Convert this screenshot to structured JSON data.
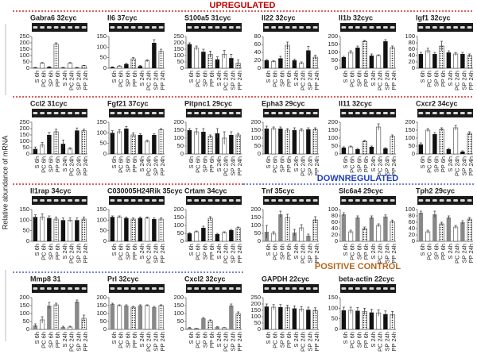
{
  "figure": {
    "y_label": "Relative abundance of mRNA",
    "sections": [
      {
        "title": "UPREGULATED",
        "color": "#c00000"
      },
      {
        "title": "DOWNREGULATED",
        "color": "#1f3fbf"
      },
      {
        "title": "POSITIVE CONTROL",
        "color": "#b5651d"
      }
    ]
  },
  "chart_data": [
    {
      "type": "bar",
      "title": "Gabra6 32cyc",
      "categories": [
        "S 6h",
        "PC 6h",
        "SP 6h",
        "PP 6h",
        "S 24h",
        "PC 24h",
        "SP 24h",
        "PP 24h"
      ],
      "values": [
        5,
        40,
        10,
        190,
        5,
        40,
        5,
        20
      ],
      "errors": [
        2,
        5,
        3,
        10,
        2,
        5,
        2,
        3
      ],
      "ylim": [
        0,
        250
      ],
      "yticks": [
        0,
        50,
        100,
        150,
        200,
        250
      ],
      "color": "#111111"
    },
    {
      "type": "bar",
      "title": "Il6 37cyc",
      "categories": [
        "S 6h",
        "PC 6h",
        "SP 6h",
        "PP 6h",
        "S 24h",
        "PC 24h",
        "SP 24h",
        "PP 24h"
      ],
      "values": [
        5,
        10,
        20,
        45,
        10,
        35,
        120,
        80
      ],
      "errors": [
        2,
        2,
        3,
        5,
        3,
        5,
        15,
        10
      ],
      "ylim": [
        0,
        150
      ],
      "yticks": [
        0,
        50,
        100,
        150
      ],
      "color": "#111111"
    },
    {
      "type": "bar",
      "title": "S100a5 31cyc",
      "categories": [
        "S 6h",
        "PC 6h",
        "SP 6h",
        "PP 6h",
        "S 24h",
        "PC 24h",
        "SP 24h",
        "PP 24h"
      ],
      "values": [
        190,
        160,
        130,
        110,
        70,
        110,
        80,
        40
      ],
      "errors": [
        10,
        15,
        20,
        25,
        20,
        30,
        30,
        25
      ],
      "ylim": [
        0,
        250
      ],
      "yticks": [
        0,
        50,
        100,
        150,
        200,
        250
      ],
      "color": "#111111"
    },
    {
      "type": "bar",
      "title": "Il22 32cyc",
      "categories": [
        "S 6h",
        "PC 6h",
        "SP 6h",
        "PP 6h",
        "S 24h",
        "PC 24h",
        "SP 24h",
        "PP 24h"
      ],
      "values": [
        20,
        17,
        25,
        58,
        20,
        13,
        45,
        28
      ],
      "errors": [
        2,
        2,
        5,
        8,
        3,
        3,
        10,
        5
      ],
      "ylim": [
        0,
        80
      ],
      "yticks": [
        0,
        20,
        40,
        60,
        80
      ],
      "color": "#111111"
    },
    {
      "type": "bar",
      "title": "Il1b 32cyc",
      "categories": [
        "S 6h",
        "PC 6h",
        "SP 6h",
        "PP 6h",
        "S 24h",
        "PC 24h",
        "SP 24h",
        "PP 24h"
      ],
      "values": [
        70,
        100,
        130,
        170,
        80,
        80,
        170,
        130
      ],
      "errors": [
        5,
        10,
        10,
        5,
        10,
        5,
        10,
        10
      ],
      "ylim": [
        0,
        200
      ],
      "yticks": [
        0,
        50,
        100,
        150,
        200
      ],
      "color": "#111111"
    },
    {
      "type": "bar",
      "title": "Igf1 32cyc",
      "categories": [
        "S 6h",
        "PC 6h",
        "SP 6h",
        "PP 6h",
        "S 24h",
        "PC 24h",
        "SP 24h",
        "PP 24h"
      ],
      "values": [
        45,
        55,
        45,
        70,
        50,
        45,
        45,
        40
      ],
      "errors": [
        5,
        8,
        5,
        15,
        5,
        5,
        5,
        5
      ],
      "ylim": [
        0,
        100
      ],
      "yticks": [
        0,
        20,
        40,
        60,
        80,
        100
      ],
      "color": "#111111"
    },
    {
      "type": "bar",
      "title": "Ccl2 31cyc",
      "categories": [
        "S 6h",
        "PC 6h",
        "SP 6h",
        "PP 6h",
        "S 24h",
        "PC 24h",
        "SP 24h",
        "PP 24h"
      ],
      "values": [
        40,
        70,
        150,
        175,
        80,
        40,
        185,
        185
      ],
      "errors": [
        15,
        20,
        20,
        20,
        30,
        10,
        20,
        10
      ],
      "ylim": [
        0,
        250
      ],
      "yticks": [
        0,
        50,
        100,
        150,
        200,
        250
      ],
      "color": "#111111"
    },
    {
      "type": "bar",
      "title": "Fgf21 37cyc",
      "categories": [
        "S 6h",
        "PC 6h",
        "SP 6h",
        "PP 6h",
        "S 24h",
        "PC 24h",
        "SP 24h",
        "PP 24h"
      ],
      "values": [
        100,
        105,
        120,
        90,
        90,
        60,
        90,
        115
      ],
      "errors": [
        10,
        10,
        10,
        10,
        5,
        5,
        5,
        5
      ],
      "ylim": [
        0,
        150
      ],
      "yticks": [
        0,
        50,
        100,
        150
      ],
      "color": "#111111"
    },
    {
      "type": "bar",
      "title": "Pitpnc1 29cyc",
      "categories": [
        "S 6h",
        "PC 6h",
        "SP 6h",
        "PP 6h",
        "S 24h",
        "PC 24h",
        "SP 24h",
        "PP 24h"
      ],
      "values": [
        150,
        140,
        140,
        110,
        130,
        100,
        120,
        120
      ],
      "errors": [
        10,
        20,
        20,
        10,
        30,
        40,
        20,
        10
      ],
      "ylim": [
        0,
        200
      ],
      "yticks": [
        0,
        50,
        100,
        150,
        200
      ],
      "color": "#111111"
    },
    {
      "type": "bar",
      "title": "Epha3 29cyc",
      "categories": [
        "S 6h",
        "PC 6h",
        "SP 6h",
        "PP 6h",
        "S 24h",
        "PC 24h",
        "SP 24h",
        "PP 24h"
      ],
      "values": [
        160,
        160,
        160,
        150,
        150,
        150,
        155,
        155
      ],
      "errors": [
        15,
        10,
        10,
        10,
        15,
        10,
        10,
        10
      ],
      "ylim": [
        0,
        200
      ],
      "yticks": [
        0,
        50,
        100,
        150,
        200
      ],
      "color": "#111111"
    },
    {
      "type": "bar",
      "title": "Il11 32cyc",
      "categories": [
        "S 6h",
        "PC 6h",
        "SP 6h",
        "PP 6h",
        "S 24h",
        "PC 24h",
        "SP 24h",
        "PP 24h"
      ],
      "values": [
        40,
        45,
        30,
        80,
        45,
        170,
        35,
        110
      ],
      "errors": [
        5,
        5,
        5,
        5,
        5,
        20,
        5,
        10
      ],
      "ylim": [
        0,
        200
      ],
      "yticks": [
        0,
        50,
        100,
        150,
        200
      ],
      "color": "#111111"
    },
    {
      "type": "bar",
      "title": "Cxcr2  34cyc",
      "categories": [
        "S 6h",
        "PC 6h",
        "SP 6h",
        "PP 6h",
        "S 24h",
        "PC 24h",
        "SP 24h",
        "PP 24h"
      ],
      "values": [
        60,
        150,
        125,
        155,
        30,
        165,
        15,
        130
      ],
      "errors": [
        10,
        10,
        10,
        10,
        5,
        15,
        5,
        10
      ],
      "ylim": [
        0,
        200
      ],
      "yticks": [
        0,
        50,
        100,
        150,
        200
      ],
      "color": "#111111"
    },
    {
      "type": "bar",
      "title": "Il1rap 34cyc",
      "categories": [
        "S 6h",
        "PC 6h",
        "SP 6h",
        "PP 6h",
        "S 24h",
        "PC 24h",
        "SP 24h",
        "PP 24h"
      ],
      "values": [
        115,
        115,
        110,
        105,
        100,
        100,
        100,
        105
      ],
      "errors": [
        10,
        15,
        10,
        10,
        10,
        10,
        10,
        10
      ],
      "ylim": [
        0,
        150
      ],
      "yticks": [
        0,
        50,
        100,
        150
      ],
      "color": "#111111"
    },
    {
      "type": "bar",
      "title": "C030005H24Rik 35cyc",
      "categories": [
        "S 6h",
        "PC 6h",
        "SP 6h",
        "PP 6h",
        "S 24h",
        "PC 24h",
        "SP 24h",
        "PP 24h"
      ],
      "values": [
        115,
        115,
        110,
        105,
        110,
        110,
        105,
        105
      ],
      "errors": [
        5,
        5,
        5,
        5,
        5,
        5,
        5,
        5
      ],
      "ylim": [
        0,
        150
      ],
      "yticks": [
        0,
        50,
        100,
        150
      ],
      "color": "#111111"
    },
    {
      "type": "bar",
      "title": "Crtam 34cyc",
      "categories": [
        "S 6h",
        "PC 6h",
        "SP 6h",
        "PP 6h",
        "S 24h",
        "PC 24h",
        "SP 24h",
        "PP 24h"
      ],
      "values": [
        50,
        60,
        85,
        145,
        45,
        55,
        70,
        85
      ],
      "errors": [
        5,
        5,
        10,
        10,
        5,
        5,
        5,
        5
      ],
      "ylim": [
        0,
        200
      ],
      "yticks": [
        0,
        50,
        100,
        150,
        200
      ],
      "color": "#111111"
    },
    {
      "type": "bar",
      "title": "Tnf 35cyc",
      "categories": [
        "S 6h",
        "PC 6h",
        "SP 6h",
        "PP 6h",
        "S 24h",
        "PC 24h",
        "SP 24h",
        "PP 24h"
      ],
      "values": [
        60,
        50,
        170,
        150,
        55,
        85,
        35,
        135
      ],
      "errors": [
        40,
        10,
        20,
        20,
        20,
        20,
        10,
        20
      ],
      "ylim": [
        0,
        200
      ],
      "yticks": [
        0,
        50,
        100,
        150,
        200
      ],
      "color": "#888888"
    },
    {
      "type": "bar",
      "title": "Slc6a4 29cyc",
      "categories": [
        "S 6h",
        "PC 6h",
        "SP 6h",
        "PP 6h",
        "S 24h",
        "PC 24h",
        "SP 24h",
        "PP 24h"
      ],
      "values": [
        85,
        30,
        75,
        40,
        75,
        50,
        78,
        62
      ],
      "errors": [
        5,
        5,
        5,
        5,
        5,
        5,
        5,
        5
      ],
      "ylim": [
        0,
        100
      ],
      "yticks": [
        0,
        20,
        40,
        60,
        80,
        100
      ],
      "color": "#888888"
    },
    {
      "type": "bar",
      "title": "Tph2 29cyc",
      "categories": [
        "S 6h",
        "PC 6h",
        "SP 6h",
        "PP 6h",
        "S 24h",
        "PC 24h",
        "SP 24h",
        "PP 24h"
      ],
      "values": [
        90,
        30,
        85,
        55,
        75,
        45,
        60,
        70
      ],
      "errors": [
        5,
        5,
        10,
        5,
        5,
        5,
        5,
        5
      ],
      "ylim": [
        0,
        100
      ],
      "yticks": [
        0,
        20,
        40,
        60,
        80,
        100
      ],
      "color": "#888888"
    },
    {
      "type": "bar",
      "title": "Mmp8 31",
      "categories": [
        "S 6h",
        "PC 6h",
        "SP 6h",
        "PP 6h",
        "S 24h",
        "PC 24h",
        "SP 24h",
        "PP 24h"
      ],
      "values": [
        25,
        60,
        150,
        155,
        15,
        15,
        175,
        70
      ],
      "errors": [
        10,
        20,
        20,
        10,
        5,
        5,
        10,
        20
      ],
      "ylim": [
        0,
        200
      ],
      "yticks": [
        0,
        50,
        100,
        150,
        200
      ],
      "color": "#888888"
    },
    {
      "type": "bar",
      "title": "Prl 32cyc",
      "categories": [
        "S 6h",
        "PC 6h",
        "SP 6h",
        "PP 6h",
        "S 24h",
        "PC 24h",
        "SP 24h",
        "PP 24h"
      ],
      "values": [
        160,
        150,
        150,
        140,
        150,
        150,
        140,
        150
      ],
      "errors": [
        5,
        5,
        5,
        5,
        5,
        5,
        5,
        5
      ],
      "ylim": [
        0,
        200
      ],
      "yticks": [
        0,
        50,
        100,
        150,
        200
      ],
      "color": "#888888"
    },
    {
      "type": "bar",
      "title": "Cxcl2 32cyc",
      "categories": [
        "S 6h",
        "PC 6h",
        "SP 6h",
        "PP 6h",
        "S 24h",
        "PC 24h",
        "SP 24h",
        "PP 24h"
      ],
      "values": [
        10,
        5,
        70,
        55,
        15,
        10,
        150,
        100
      ],
      "errors": [
        2,
        2,
        5,
        5,
        2,
        2,
        10,
        10
      ],
      "ylim": [
        0,
        200
      ],
      "yticks": [
        0,
        50,
        100,
        150,
        200
      ],
      "color": "#888888"
    },
    {
      "type": "bar",
      "title": "GAPDH 22cyc",
      "categories": [
        "S 6h",
        "PC 6h",
        "SP 6h",
        "PP 6h",
        "S 24h",
        "PC 24h",
        "SP 24h",
        "PP 24h"
      ],
      "values": [
        180,
        175,
        175,
        170,
        165,
        160,
        155,
        150
      ],
      "errors": [
        20,
        20,
        20,
        20,
        20,
        20,
        20,
        20
      ],
      "ylim": [
        0,
        250
      ],
      "yticks": [
        0,
        50,
        100,
        150,
        200,
        250
      ],
      "color": "#111111"
    },
    {
      "type": "bar",
      "title": "beta-actin 22cyc",
      "categories": [
        "S 6h",
        "PC 6h",
        "SP 6h",
        "PP 6h",
        "S 24h",
        "PC 24h",
        "SP 24h",
        "PP 24h"
      ],
      "values": [
        90,
        90,
        88,
        85,
        80,
        78,
        72,
        70
      ],
      "errors": [
        15,
        15,
        15,
        15,
        15,
        15,
        15,
        15
      ],
      "ylim": [
        0,
        150
      ],
      "yticks": [
        0,
        50,
        100,
        150
      ],
      "color": "#111111"
    }
  ]
}
